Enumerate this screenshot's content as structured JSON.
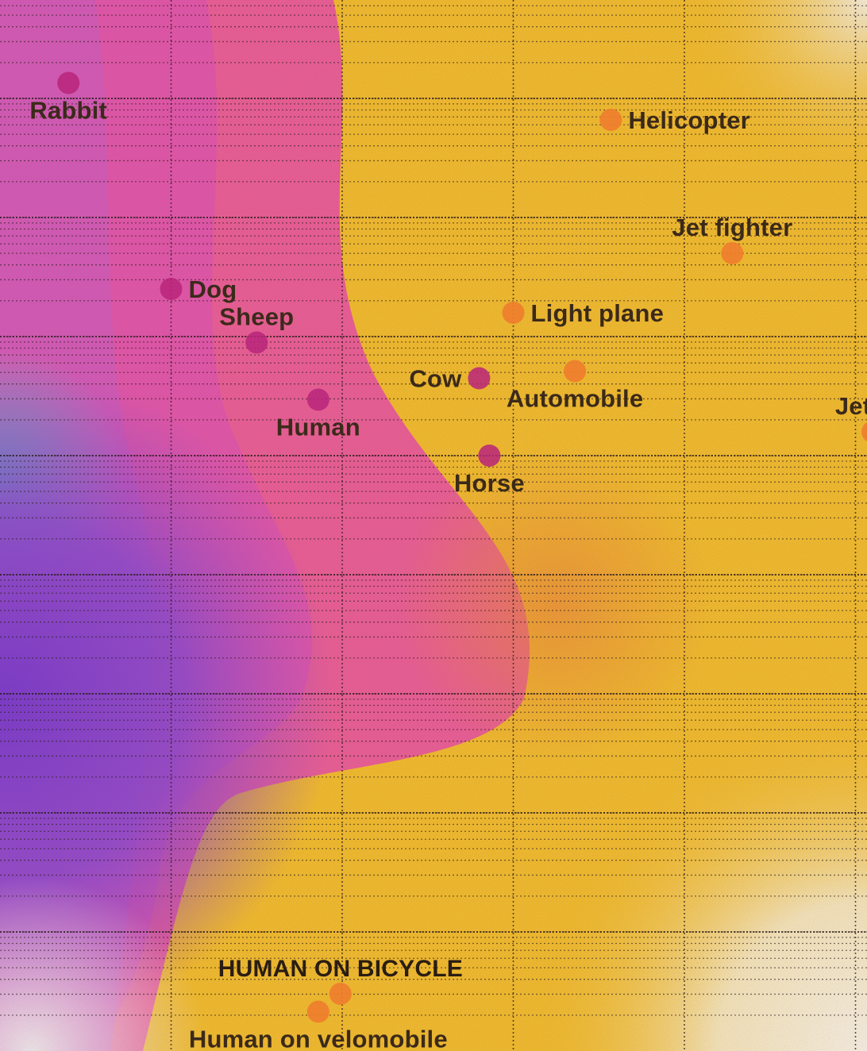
{
  "chart_data": {
    "type": "scatter",
    "title": "",
    "xlabel": "",
    "ylabel": "",
    "grid": true,
    "legend": "none",
    "colors": {
      "animal": "#b8247a",
      "machine": "#ef7e2e",
      "label": "#3b2a1a",
      "grid": "#2b1d1d"
    },
    "points": [
      {
        "label": "Rabbit",
        "kind": "animal",
        "x": 0.4,
        "y": 8.13,
        "label_pos": "below"
      },
      {
        "label": "Helicopter",
        "kind": "machine",
        "x": 3.57,
        "y": 7.82,
        "label_pos": "right"
      },
      {
        "label": "Jet fighter",
        "kind": "machine",
        "x": 4.28,
        "y": 6.7,
        "label_pos": "above"
      },
      {
        "label": "Dog",
        "kind": "animal",
        "x": 1.0,
        "y": 6.4,
        "label_pos": "right"
      },
      {
        "label": "Light plane",
        "kind": "machine",
        "x": 3.0,
        "y": 6.2,
        "label_pos": "right"
      },
      {
        "label": "Sheep",
        "kind": "animal",
        "x": 1.5,
        "y": 5.95,
        "label_pos": "above"
      },
      {
        "label": "Cow",
        "kind": "animal",
        "x": 2.8,
        "y": 5.65,
        "label_pos": "left"
      },
      {
        "label": "Automobile",
        "kind": "machine",
        "x": 3.36,
        "y": 5.71,
        "label_pos": "below"
      },
      {
        "label": "Human",
        "kind": "animal",
        "x": 1.86,
        "y": 5.47,
        "label_pos": "below"
      },
      {
        "label": "Jet tra",
        "kind": "machine",
        "x": 5.1,
        "y": 5.2,
        "label_pos": "above"
      },
      {
        "label": "Horse",
        "kind": "animal",
        "x": 2.86,
        "y": 5.0,
        "label_pos": "below"
      },
      {
        "label": "HUMAN ON BICYCLE",
        "kind": "machine",
        "x": 1.99,
        "y": 0.48,
        "label_pos": "above",
        "emphasis": true
      },
      {
        "label": "Human on velomobile",
        "kind": "machine",
        "x": 1.86,
        "y": 0.33,
        "label_pos": "below"
      }
    ]
  }
}
